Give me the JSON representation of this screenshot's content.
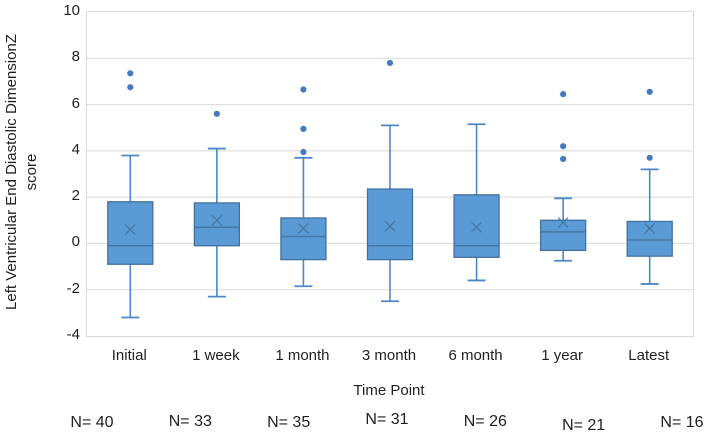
{
  "axes": {
    "y_title_line1": "Left Ventricular End Diastolic DimensionZ",
    "y_title_line2": "score",
    "x_title": "Time Point"
  },
  "chart_data": {
    "type": "boxplot",
    "title": "",
    "xlabel": "Time Point",
    "ylabel": "Left Ventricular End Diastolic DimensionZ score",
    "ylim": [
      -4,
      10
    ],
    "yticks": [
      10,
      8,
      6,
      4,
      2,
      0,
      -2,
      -4
    ],
    "grid": true,
    "legend": "none",
    "categories": [
      "Initial",
      "1 week",
      "1 month",
      "3 month",
      "6 month",
      "1 year",
      "Latest"
    ],
    "n_labels": [
      "N= 40",
      "N= 33",
      "N= 35",
      "N= 31",
      "N= 26",
      "N= 21",
      "N= 16"
    ],
    "series": [
      {
        "category": "Initial",
        "n": 40,
        "whisker_low": -3.2,
        "q1": -0.9,
        "median": -0.1,
        "q3": 1.8,
        "whisker_high": 3.8,
        "mean": 0.6,
        "outliers": [
          6.75,
          7.35
        ]
      },
      {
        "category": "1 week",
        "n": 33,
        "whisker_low": -2.3,
        "q1": -0.1,
        "median": 0.7,
        "q3": 1.75,
        "whisker_high": 4.1,
        "mean": 1.0,
        "outliers": [
          5.6
        ]
      },
      {
        "category": "1 month",
        "n": 35,
        "whisker_low": -1.85,
        "q1": -0.7,
        "median": 0.3,
        "q3": 1.1,
        "whisker_high": 3.7,
        "mean": 0.65,
        "outliers": [
          3.95,
          4.95,
          6.65
        ]
      },
      {
        "category": "3 month",
        "n": 31,
        "whisker_low": -2.5,
        "q1": -0.7,
        "median": -0.1,
        "q3": 2.35,
        "whisker_high": 5.1,
        "mean": 0.75,
        "outliers": [
          7.8
        ]
      },
      {
        "category": "6 month",
        "n": 26,
        "whisker_low": -1.6,
        "q1": -0.6,
        "median": -0.1,
        "q3": 2.1,
        "whisker_high": 5.15,
        "mean": 0.7,
        "outliers": []
      },
      {
        "category": "1 year",
        "n": 21,
        "whisker_low": -0.75,
        "q1": -0.3,
        "median": 0.5,
        "q3": 1.0,
        "whisker_high": 1.95,
        "mean": 0.9,
        "outliers": [
          3.65,
          4.2,
          6.45
        ]
      },
      {
        "category": "Latest",
        "n": 16,
        "whisker_low": -1.75,
        "q1": -0.55,
        "median": 0.15,
        "q3": 0.95,
        "whisker_high": 3.2,
        "mean": 0.65,
        "outliers": [
          3.7,
          6.55
        ]
      }
    ],
    "colors": {
      "box_fill": "#5B9BD5",
      "box_border": "#41719C",
      "whisker": "#4E87C3",
      "median": "#41719C",
      "mean_marker": "#41719C",
      "outlier": "#4779BE",
      "gridline": "#D9D9D9",
      "plot_border": "#D9D9D9",
      "text": "#1F1F1F"
    }
  }
}
